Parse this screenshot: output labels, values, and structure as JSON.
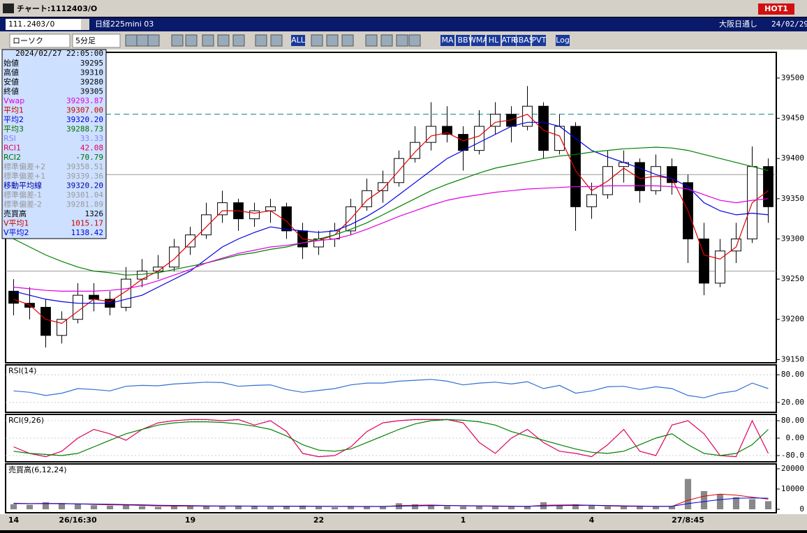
{
  "window": {
    "title": "チャート:1112403/O",
    "badge": "HOT1"
  },
  "header": {
    "symbol": "111.2403/O",
    "name": "日経225mini 03",
    "session": "大阪日通し",
    "date": "24/02/29"
  },
  "toolbar": {
    "chart_style": "ローソク",
    "interval": "5分足",
    "buttons": [
      "ALL",
      "MA",
      "BB",
      "WMA",
      "HL",
      "ATR",
      "BBAS",
      "PVT",
      "Log"
    ]
  },
  "info_panel": {
    "datetime": "2024/02/27  22:05:00",
    "rows": [
      {
        "label": "始値",
        "value": "39295",
        "color": "#000"
      },
      {
        "label": "高値",
        "value": "39310",
        "color": "#000"
      },
      {
        "label": "安値",
        "value": "39280",
        "color": "#000"
      },
      {
        "label": "終値",
        "value": "39305",
        "color": "#000"
      },
      {
        "label": "Vwap",
        "value": "39293.87",
        "color": "#e000e0"
      },
      {
        "label": "平均1",
        "value": "39307.00",
        "color": "#d00000"
      },
      {
        "label": "平均2",
        "value": "39320.20",
        "color": "#0000d0"
      },
      {
        "label": "平均3",
        "value": "39288.73",
        "color": "#007000"
      },
      {
        "label": "RSI",
        "value": "33.33",
        "color": "#8080ff"
      },
      {
        "label": "RCI1",
        "value": "42.08",
        "color": "#e00060"
      },
      {
        "label": "RCI2",
        "value": "-70.79",
        "color": "#007000"
      },
      {
        "label": "標準偏差+2",
        "value": "39358.51",
        "color": "#999"
      },
      {
        "label": "標準偏差+1",
        "value": "39339.36",
        "color": "#999"
      },
      {
        "label": "移動平均線",
        "value": "39320.20",
        "color": "#0000a0"
      },
      {
        "label": "標準偏差-1",
        "value": "39301.04",
        "color": "#999"
      },
      {
        "label": "標準偏差-2",
        "value": "39281.89",
        "color": "#999"
      },
      {
        "label": "売買高",
        "value": "1326",
        "color": "#000"
      },
      {
        "label": "V平均1",
        "value": "1015.17",
        "color": "#d00000"
      },
      {
        "label": "V平均2",
        "value": "1138.42",
        "color": "#0000d0"
      }
    ]
  },
  "chart_data": [
    {
      "type": "candlestick",
      "categories": [
        "14",
        null,
        null,
        null,
        "26/16:30",
        null,
        null,
        null,
        null,
        null,
        null,
        "19",
        null,
        null,
        null,
        null,
        null,
        null,
        null,
        "22",
        null,
        null,
        null,
        null,
        null,
        null,
        null,
        null,
        "1",
        null,
        null,
        null,
        null,
        null,
        null,
        null,
        "4",
        null,
        null,
        null,
        null,
        null,
        "27/8:45",
        null,
        null,
        null,
        null,
        null
      ],
      "open": [
        39235,
        39220,
        39215,
        39180,
        39200,
        39230,
        39225,
        39215,
        39250,
        39260,
        39265,
        39290,
        39305,
        39330,
        39345,
        39325,
        39335,
        39340,
        39310,
        39290,
        39300,
        39310,
        39340,
        39360,
        39370,
        39400,
        39420,
        39440,
        39430,
        39410,
        39440,
        39455,
        39440,
        39465,
        39410,
        39440,
        39340,
        39355,
        39390,
        39395,
        39360,
        39390,
        39370,
        39300,
        39245,
        39285,
        39300,
        39390
      ],
      "high": [
        39250,
        39240,
        39225,
        39210,
        39245,
        39245,
        39235,
        39265,
        39275,
        39280,
        39300,
        39315,
        39345,
        39360,
        39350,
        39345,
        39350,
        39345,
        39320,
        39310,
        39320,
        39350,
        39375,
        39385,
        39410,
        39440,
        39470,
        39465,
        39440,
        39460,
        39470,
        39465,
        39490,
        39470,
        39455,
        39445,
        39370,
        39410,
        39410,
        39400,
        39405,
        39400,
        39380,
        39320,
        39300,
        39320,
        39415,
        39400
      ],
      "low": [
        39205,
        39200,
        39165,
        39170,
        39195,
        39210,
        39205,
        39210,
        39240,
        39250,
        39260,
        39280,
        39300,
        39320,
        39310,
        39315,
        39320,
        39300,
        39275,
        39280,
        39290,
        39305,
        39335,
        39345,
        39365,
        39395,
        39410,
        39420,
        39385,
        39405,
        39430,
        39420,
        39435,
        39400,
        39405,
        39310,
        39325,
        39350,
        39370,
        39345,
        39355,
        39355,
        39270,
        39230,
        39240,
        39270,
        39295,
        39320
      ],
      "close": [
        39220,
        39215,
        39180,
        39200,
        39230,
        39225,
        39215,
        39250,
        39260,
        39265,
        39290,
        39305,
        39330,
        39345,
        39325,
        39335,
        39340,
        39310,
        39290,
        39300,
        39310,
        39340,
        39360,
        39370,
        39400,
        39420,
        39440,
        39430,
        39410,
        39440,
        39455,
        39440,
        39465,
        39410,
        39440,
        39340,
        39355,
        39390,
        39395,
        39360,
        39390,
        39370,
        39300,
        39245,
        39285,
        39300,
        39390,
        39340
      ],
      "lines": [
        {
          "color": "#e00000",
          "values": [
            39225,
            39218,
            39200,
            39195,
            39210,
            39225,
            39222,
            39235,
            39250,
            39260,
            39275,
            39295,
            39315,
            39335,
            39335,
            39332,
            39335,
            39322,
            39300,
            39298,
            39305,
            39325,
            39348,
            39362,
            39385,
            39408,
            39428,
            39432,
            39422,
            39428,
            39445,
            39448,
            39455,
            39435,
            39428,
            39385,
            39360,
            39372,
            39388,
            39375,
            39378,
            39375,
            39335,
            39280,
            39275,
            39290,
            39345,
            39360
          ]
        },
        {
          "color": "#0000e0",
          "values": [
            39235,
            39230,
            39225,
            39222,
            39220,
            39220,
            39220,
            39225,
            39230,
            39240,
            39250,
            39260,
            39275,
            39290,
            39300,
            39308,
            39315,
            39312,
            39310,
            39308,
            39310,
            39318,
            39328,
            39340,
            39355,
            39370,
            39385,
            39400,
            39410,
            39420,
            39430,
            39440,
            39445,
            39445,
            39440,
            39425,
            39410,
            39402,
            39395,
            39388,
            39380,
            39375,
            39365,
            39345,
            39335,
            39330,
            39332,
            39330
          ]
        },
        {
          "color": "#008000",
          "values": [
            39300,
            39290,
            39280,
            39272,
            39265,
            39260,
            39258,
            39255,
            39256,
            39258,
            39262,
            39266,
            39270,
            39275,
            39280,
            39283,
            39287,
            39290,
            39295,
            39300,
            39305,
            39312,
            39320,
            39330,
            39340,
            39350,
            39360,
            39368,
            39375,
            39382,
            39388,
            39392,
            39396,
            39400,
            39403,
            39405,
            39408,
            39410,
            39412,
            39413,
            39414,
            39413,
            39410,
            39405,
            39400,
            39395,
            39390,
            39385
          ]
        },
        {
          "color": "#e000e0",
          "values": [
            39240,
            39238,
            39236,
            39235,
            39235,
            39235,
            39236,
            39238,
            39242,
            39248,
            39255,
            39262,
            39270,
            39276,
            39282,
            39286,
            39290,
            39292,
            39295,
            39298,
            39300,
            39305,
            39312,
            39320,
            39328,
            39335,
            39342,
            39348,
            39352,
            39355,
            39358,
            39360,
            39362,
            39363,
            39364,
            39365,
            39365,
            39366,
            39366,
            39366,
            39366,
            39365,
            39362,
            39355,
            39348,
            39345,
            39348,
            39350
          ]
        }
      ],
      "hlines": [
        {
          "value": 39455,
          "color": "#008080",
          "dash": true
        },
        {
          "value": 39380,
          "color": "#999",
          "dash": false
        },
        {
          "value": 39260,
          "color": "#999",
          "dash": false
        }
      ],
      "ylim": [
        39146,
        39532
      ],
      "yticks": [
        39500,
        39450,
        39400,
        39350,
        39300,
        39250,
        39200,
        39150
      ]
    },
    {
      "type": "line",
      "label": "RSI(14)",
      "series": [
        {
          "color": "#3070d0",
          "values": [
            45,
            42,
            35,
            40,
            50,
            48,
            45,
            55,
            57,
            56,
            60,
            62,
            64,
            63,
            55,
            57,
            58,
            48,
            42,
            46,
            50,
            58,
            62,
            62,
            66,
            68,
            70,
            66,
            58,
            62,
            64,
            60,
            65,
            50,
            57,
            40,
            45,
            54,
            55,
            48,
            54,
            50,
            35,
            30,
            40,
            45,
            62,
            50
          ]
        }
      ],
      "ylim": [
        -1.5,
        101.5
      ],
      "yticks": [
        {
          "value": 80,
          "label": "80.00"
        },
        {
          "value": 20,
          "label": "20.00"
        }
      ]
    },
    {
      "type": "line",
      "label": "RCI(9,26)",
      "series": [
        {
          "color": "#e00060",
          "values": [
            -40,
            -70,
            -85,
            -60,
            0,
            40,
            20,
            -10,
            40,
            70,
            80,
            85,
            85,
            80,
            85,
            60,
            80,
            30,
            -70,
            -85,
            -80,
            -40,
            30,
            70,
            80,
            85,
            85,
            85,
            70,
            -20,
            -70,
            0,
            40,
            -20,
            -60,
            -70,
            -85,
            -30,
            40,
            -60,
            -80,
            60,
            80,
            20,
            -80,
            -85,
            80,
            -70
          ]
        },
        {
          "color": "#008000",
          "values": [
            -60,
            -70,
            -75,
            -80,
            -70,
            -40,
            -10,
            20,
            40,
            60,
            70,
            75,
            75,
            72,
            65,
            55,
            40,
            10,
            -30,
            -55,
            -60,
            -50,
            -20,
            10,
            40,
            65,
            80,
            85,
            82,
            75,
            60,
            30,
            10,
            -10,
            -30,
            -50,
            -65,
            -70,
            -60,
            -30,
            0,
            20,
            -30,
            -70,
            -80,
            -70,
            -30,
            40
          ]
        }
      ],
      "ylim": [
        -108.8,
        108.8
      ],
      "yticks": [
        {
          "value": 80,
          "label": "80.00"
        },
        {
          "value": 0,
          "label": "0.00"
        },
        {
          "value": -80,
          "label": "-80.0"
        }
      ]
    },
    {
      "type": "bar",
      "label": "売買高(6,12,24)",
      "color": "#888",
      "values": [
        2500,
        2200,
        3500,
        3000,
        2500,
        2000,
        1800,
        2200,
        1500,
        1200,
        1500,
        1800,
        1600,
        1500,
        1800,
        1400,
        1200,
        1500,
        1800,
        1200,
        1000,
        1300,
        1500,
        1400,
        3000,
        2500,
        2200,
        1600,
        1400,
        1500,
        1300,
        1200,
        1500,
        3500,
        2000,
        2500,
        1800,
        1400,
        1300,
        1500,
        1200,
        1400,
        15000,
        9000,
        7500,
        6000,
        5000,
        4000
      ],
      "lines": [
        {
          "color": "#e00000",
          "values": [
            3000,
            2800,
            2900,
            2900,
            2700,
            2400,
            2200,
            2100,
            1900,
            1700,
            1600,
            1600,
            1550,
            1550,
            1600,
            1550,
            1500,
            1500,
            1500,
            1450,
            1400,
            1350,
            1350,
            1350,
            1800,
            2000,
            2100,
            1900,
            1700,
            1600,
            1500,
            1400,
            1400,
            2000,
            2100,
            2200,
            2000,
            1700,
            1500,
            1450,
            1400,
            1400,
            4500,
            6500,
            7500,
            7000,
            6000,
            5000
          ]
        },
        {
          "color": "#0000e0",
          "values": [
            2800,
            2800,
            2800,
            2750,
            2700,
            2600,
            2500,
            2300,
            2200,
            2000,
            1900,
            1800,
            1700,
            1650,
            1600,
            1600,
            1550,
            1550,
            1550,
            1500,
            1500,
            1450,
            1400,
            1400,
            1550,
            1700,
            1800,
            1850,
            1800,
            1700,
            1650,
            1550,
            1500,
            1650,
            1800,
            1900,
            1950,
            1850,
            1700,
            1600,
            1500,
            1450,
            2800,
            3800,
            4800,
            5400,
            5600,
            5500
          ]
        }
      ],
      "ylim": [
        -1724,
        22414
      ],
      "yticks": [
        20000,
        10000,
        0
      ]
    }
  ]
}
